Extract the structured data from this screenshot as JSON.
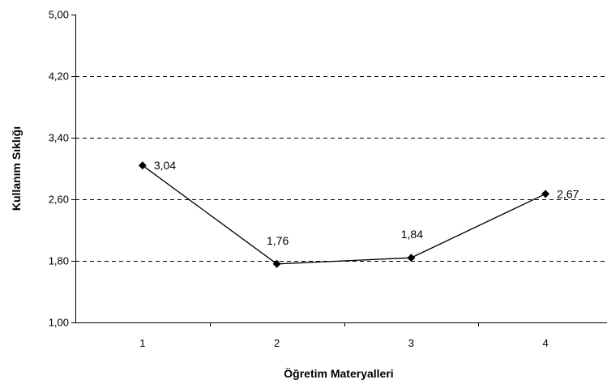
{
  "chart_data": {
    "type": "line",
    "title": "",
    "xlabel": "Öğretim Materyalleri",
    "ylabel": "Kullanım Sıklığı",
    "categories": [
      "1",
      "2",
      "3",
      "4"
    ],
    "values": [
      3.04,
      1.76,
      1.84,
      2.67
    ],
    "data_labels": [
      "3,04",
      "1,76",
      "1,84",
      "2,67"
    ],
    "ylim": [
      1.0,
      5.0
    ],
    "yticks": [
      1.0,
      1.8,
      2.6,
      3.4,
      4.2,
      5.0
    ],
    "ytick_labels": [
      "1,00",
      "1,80",
      "2,60",
      "3,40",
      "4,20",
      "5,00"
    ],
    "grid": "horizontal dashed",
    "legend": "none",
    "marker": "diamond",
    "line_color": "#000000"
  }
}
